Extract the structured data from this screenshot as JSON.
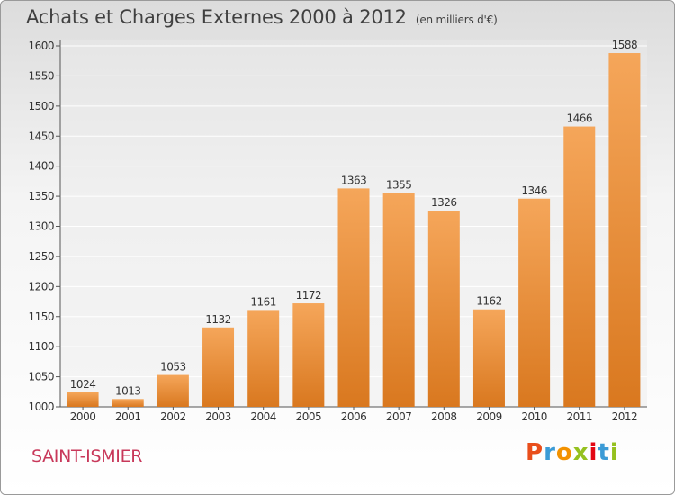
{
  "header": {
    "title": "Achats et Charges Externes 2000 à 2012",
    "subtitle": "(en milliers d'€)"
  },
  "footer": {
    "commune": "SAINT-ISMIER",
    "logo_letters": [
      "P",
      "r",
      "o",
      "x",
      "i",
      "t",
      "i"
    ],
    "logo_colors": [
      "#e94e1b",
      "#3b9bd6",
      "#f39200",
      "#95c11f",
      "#e30613",
      "#3b9bd6",
      "#95c11f"
    ]
  },
  "colors": {
    "bar_light": "#f5a65a",
    "bar_dark": "#d9781f",
    "grid": "#ffffff",
    "axis": "#555555",
    "text": "#333333"
  },
  "chart_data": {
    "type": "bar",
    "title": "Achats et Charges Externes 2000 à 2012",
    "subtitle": "(en milliers d'€)",
    "xlabel": "",
    "ylabel": "",
    "categories": [
      "2000",
      "2001",
      "2002",
      "2003",
      "2004",
      "2005",
      "2006",
      "2007",
      "2008",
      "2009",
      "2010",
      "2011",
      "2012"
    ],
    "values": [
      1024,
      1013,
      1053,
      1132,
      1161,
      1172,
      1363,
      1355,
      1326,
      1162,
      1346,
      1466,
      1588
    ],
    "ylim": [
      1000,
      1600
    ],
    "yticks": [
      1000,
      1050,
      1100,
      1150,
      1200,
      1250,
      1300,
      1350,
      1400,
      1450,
      1500,
      1550,
      1600
    ],
    "grid": true,
    "data_labels": true
  }
}
